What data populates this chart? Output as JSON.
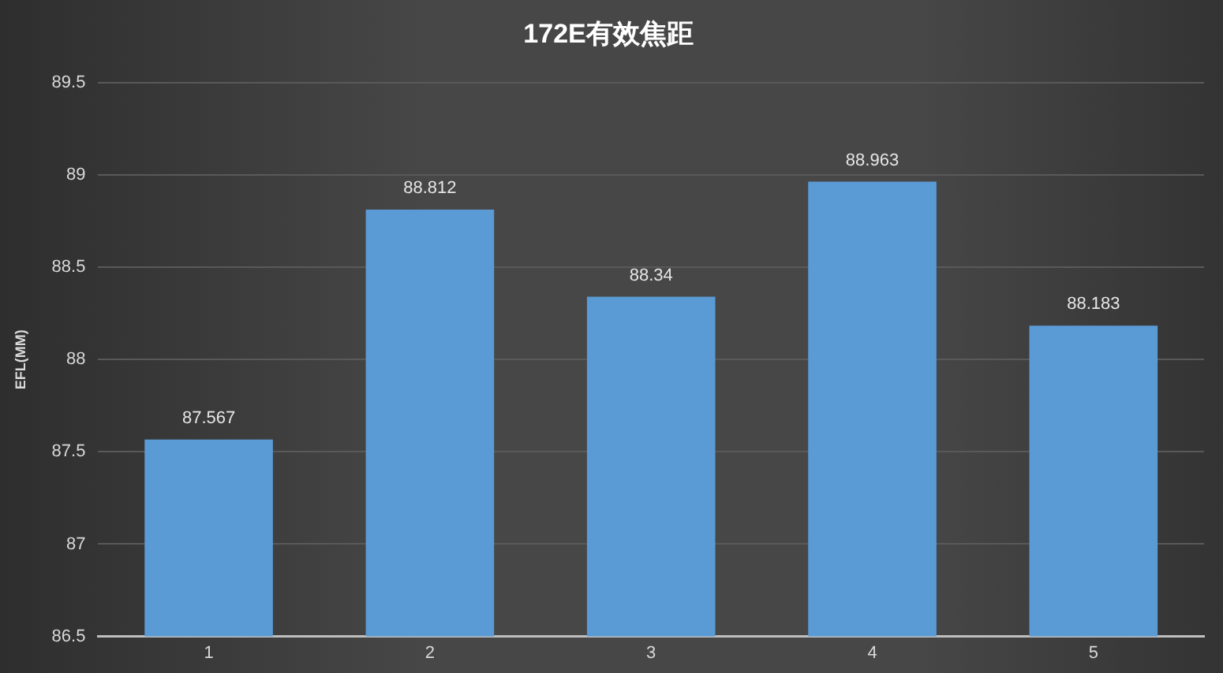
{
  "chart_data": {
    "type": "bar",
    "title": "172E有效焦距",
    "ylabel": "EFL(MM)",
    "categories": [
      "1",
      "2",
      "3",
      "4",
      "5"
    ],
    "values": [
      87.567,
      88.812,
      88.34,
      88.963,
      88.183
    ],
    "color": "#5b9bd5",
    "ylim": [
      86.5,
      89.5
    ],
    "yticks": [
      86.5,
      87,
      87.5,
      88,
      88.5,
      89,
      89.5
    ],
    "grid": "y",
    "data_labels": true,
    "legend": false
  }
}
